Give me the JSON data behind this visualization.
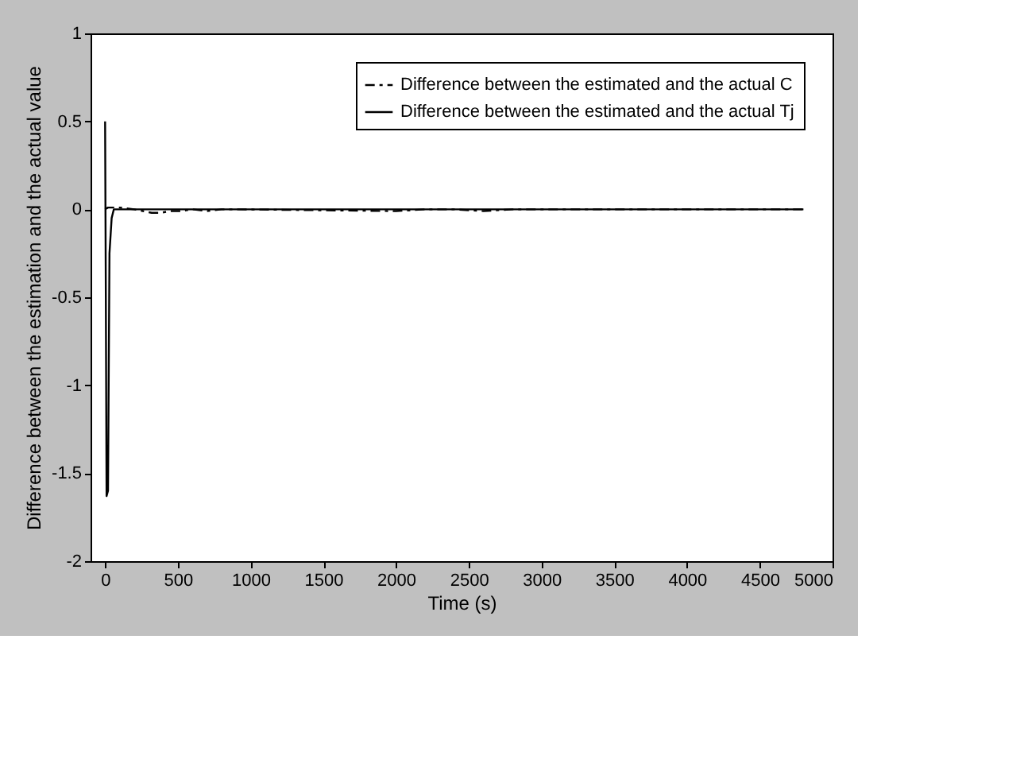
{
  "chart_data": {
    "type": "line",
    "xlabel": "Time (s)",
    "ylabel": "Difference between the estimation and the actual value",
    "xlim": [
      -100,
      5000
    ],
    "xticks": [
      0,
      500,
      1000,
      1500,
      2000,
      2500,
      3000,
      3500,
      4000,
      4500,
      5000
    ],
    "ylim": [
      -2,
      1
    ],
    "yticks": [
      -2,
      -1.5,
      -1,
      -0.5,
      0,
      0.5,
      1
    ],
    "legend": "top right",
    "grid": false,
    "series": [
      {
        "name": "Difference between the estimated and the actual C",
        "color": "#000000",
        "line_style": "dashed",
        "x": [
          0,
          20,
          60,
          100,
          200,
          260,
          320,
          380,
          450,
          520,
          600,
          700,
          800,
          900,
          2000,
          2200,
          2400,
          2600,
          2800,
          3000,
          4800
        ],
        "values": [
          0,
          0.01,
          0.01,
          0.01,
          0,
          -0.01,
          -0.02,
          -0.02,
          -0.01,
          -0.01,
          0,
          -0.01,
          0,
          0,
          -0.01,
          0,
          0,
          -0.01,
          0,
          0,
          0
        ]
      },
      {
        "name": "Difference between the estimated and the actual Tj",
        "color": "#000000",
        "line_style": "solid",
        "x": [
          0,
          5,
          10,
          20,
          30,
          45,
          60,
          100,
          4800
        ],
        "values": [
          0.5,
          -0.5,
          -1.63,
          -1.6,
          -0.25,
          -0.05,
          0,
          0,
          0
        ]
      }
    ]
  }
}
